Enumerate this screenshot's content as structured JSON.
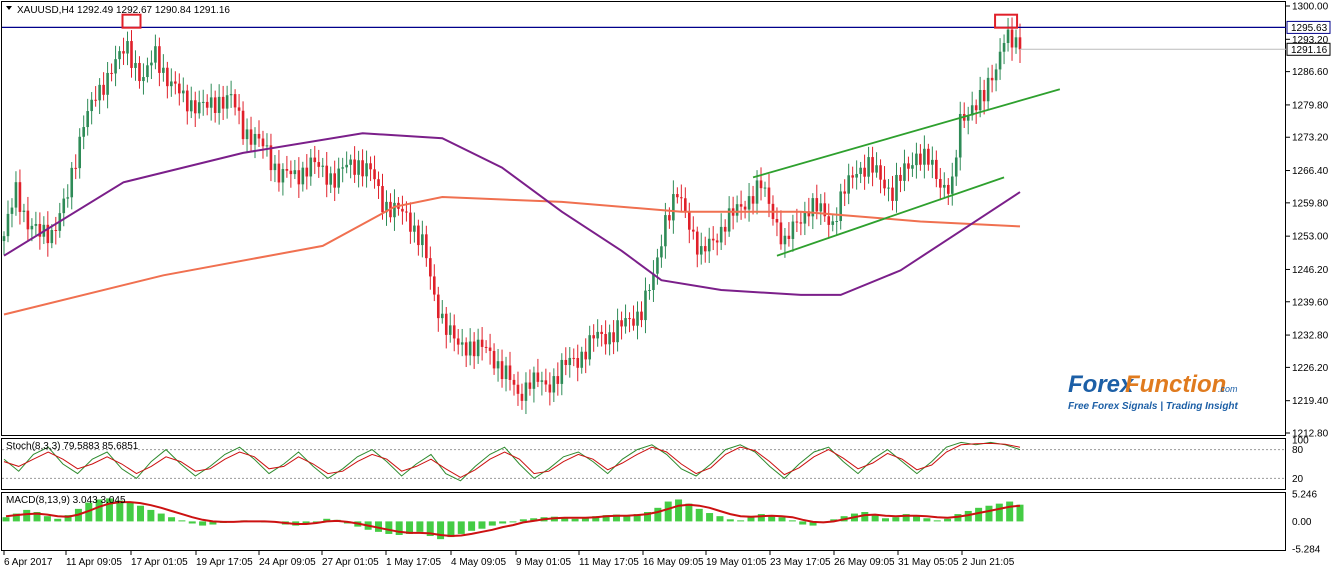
{
  "header": {
    "text": "XAUUSD,H4  1292.49 1292.67 1290.84 1291.16"
  },
  "stoch": {
    "label": "Stoch(8,3,3) 79.5883 85.6851"
  },
  "macd": {
    "label": "MACD(8,13,9) 3.043 3.045"
  },
  "watermark": {
    "brand_a": "Forex",
    "brand_b": "Function",
    "brand_c": ".com",
    "tagline": "Free Forex Signals | Trading Insight"
  },
  "colors": {
    "bull": "#2e8b57",
    "bear": "#e0202a",
    "ma_slow": "#f07050",
    "ma_mid": "#7b1f8a",
    "channel": "#2ea02e",
    "resistance": "#00008b",
    "highlight": "#e0202a",
    "macd_hist": "#44cc44",
    "macd_signal": "#cc1111",
    "stoch_main": "#2e8b2e",
    "stoch_signal": "#cc1111"
  },
  "chart_data": [
    {
      "type": "candlestick",
      "title": "XAUUSD,H4",
      "y_ticks": [
        "1300.00",
        "1293.20",
        "1286.60",
        "1279.80",
        "1273.20",
        "1266.40",
        "1259.80",
        "1253.00",
        "1246.20",
        "1239.60",
        "1232.80",
        "1226.20",
        "1219.40",
        "1212.80"
      ],
      "ylim": [
        1212.8,
        1300.0
      ],
      "x_ticks": [
        "6 Apr 2017",
        "11 Apr 09:05",
        "17 Apr 01:05",
        "19 Apr 17:05",
        "24 Apr 09:05",
        "27 Apr 01:05",
        "1 May 17:05",
        "4 May 09:05",
        "9 May 01:05",
        "11 May 17:05",
        "16 May 09:05",
        "19 May 01:05",
        "23 May 17:05",
        "26 May 09:05",
        "31 May 05:05",
        "2 Jun 21:05"
      ],
      "price_labels": [
        {
          "value": 1295.63,
          "text": "1295.63",
          "style": "resistance"
        },
        {
          "value": 1291.16,
          "text": "1291.16",
          "style": "current"
        }
      ],
      "resistance_level": 1295.63,
      "anchors": [
        {
          "i": 0,
          "p": 1253
        },
        {
          "i": 3,
          "p": 1262
        },
        {
          "i": 6,
          "p": 1256
        },
        {
          "i": 9,
          "p": 1253
        },
        {
          "i": 12,
          "p": 1254
        },
        {
          "i": 16,
          "p": 1261
        },
        {
          "i": 20,
          "p": 1277
        },
        {
          "i": 24,
          "p": 1282
        },
        {
          "i": 27,
          "p": 1288
        },
        {
          "i": 31,
          "p": 1291
        },
        {
          "i": 35,
          "p": 1285
        },
        {
          "i": 38,
          "p": 1290
        },
        {
          "i": 42,
          "p": 1284
        },
        {
          "i": 45,
          "p": 1281
        },
        {
          "i": 48,
          "p": 1280
        },
        {
          "i": 51,
          "p": 1279
        },
        {
          "i": 54,
          "p": 1281
        },
        {
          "i": 57,
          "p": 1281
        },
        {
          "i": 60,
          "p": 1275
        },
        {
          "i": 63,
          "p": 1273
        },
        {
          "i": 66,
          "p": 1270
        },
        {
          "i": 69,
          "p": 1266
        },
        {
          "i": 73,
          "p": 1265
        },
        {
          "i": 77,
          "p": 1268
        },
        {
          "i": 80,
          "p": 1266
        },
        {
          "i": 83,
          "p": 1265
        },
        {
          "i": 86,
          "p": 1267
        },
        {
          "i": 89,
          "p": 1268
        },
        {
          "i": 92,
          "p": 1266
        },
        {
          "i": 95,
          "p": 1260
        },
        {
          "i": 99,
          "p": 1258
        },
        {
          "i": 102,
          "p": 1256
        },
        {
          "i": 105,
          "p": 1252
        },
        {
          "i": 108,
          "p": 1240
        },
        {
          "i": 111,
          "p": 1235
        },
        {
          "i": 114,
          "p": 1230
        },
        {
          "i": 117,
          "p": 1231
        },
        {
          "i": 120,
          "p": 1230
        },
        {
          "i": 123,
          "p": 1228
        },
        {
          "i": 126,
          "p": 1225
        },
        {
          "i": 129,
          "p": 1220
        },
        {
          "i": 132,
          "p": 1224
        },
        {
          "i": 136,
          "p": 1222
        },
        {
          "i": 140,
          "p": 1226
        },
        {
          "i": 144,
          "p": 1228
        },
        {
          "i": 148,
          "p": 1232
        },
        {
          "i": 152,
          "p": 1233
        },
        {
          "i": 156,
          "p": 1235
        },
        {
          "i": 160,
          "p": 1238
        },
        {
          "i": 163,
          "p": 1244
        },
        {
          "i": 166,
          "p": 1257
        },
        {
          "i": 169,
          "p": 1261
        },
        {
          "i": 172,
          "p": 1256
        },
        {
          "i": 175,
          "p": 1249
        },
        {
          "i": 178,
          "p": 1252
        },
        {
          "i": 181,
          "p": 1256
        },
        {
          "i": 184,
          "p": 1258
        },
        {
          "i": 187,
          "p": 1261
        },
        {
          "i": 190,
          "p": 1263
        },
        {
          "i": 193,
          "p": 1258
        },
        {
          "i": 196,
          "p": 1251
        },
        {
          "i": 199,
          "p": 1256
        },
        {
          "i": 202,
          "p": 1259
        },
        {
          "i": 205,
          "p": 1258
        },
        {
          "i": 208,
          "p": 1256
        },
        {
          "i": 211,
          "p": 1262
        },
        {
          "i": 214,
          "p": 1267
        },
        {
          "i": 217,
          "p": 1267
        },
        {
          "i": 220,
          "p": 1265
        },
        {
          "i": 223,
          "p": 1262
        },
        {
          "i": 226,
          "p": 1266
        },
        {
          "i": 229,
          "p": 1270
        },
        {
          "i": 232,
          "p": 1268
        },
        {
          "i": 235,
          "p": 1264
        },
        {
          "i": 238,
          "p": 1263
        },
        {
          "i": 240,
          "p": 1276
        },
        {
          "i": 243,
          "p": 1280
        },
        {
          "i": 246,
          "p": 1281
        },
        {
          "i": 249,
          "p": 1288
        },
        {
          "i": 251,
          "p": 1294
        },
        {
          "i": 253,
          "p": 1292
        },
        {
          "i": 255,
          "p": 1291.16
        }
      ],
      "moving_averages": [
        {
          "name": "slow",
          "points": [
            [
              0,
              1237
            ],
            [
              40,
              1245
            ],
            [
              80,
              1251
            ],
            [
              98,
              1259
            ],
            [
              110,
              1261
            ],
            [
              140,
              1260
            ],
            [
              170,
              1258
            ],
            [
              200,
              1258
            ],
            [
              230,
              1256
            ],
            [
              255,
              1255
            ]
          ]
        },
        {
          "name": "mid",
          "points": [
            [
              0,
              1249
            ],
            [
              30,
              1264
            ],
            [
              60,
              1270
            ],
            [
              90,
              1274
            ],
            [
              110,
              1273
            ],
            [
              125,
              1267
            ],
            [
              140,
              1258
            ],
            [
              155,
              1250
            ],
            [
              165,
              1244
            ],
            [
              180,
              1242
            ],
            [
              200,
              1241
            ],
            [
              210,
              1241
            ],
            [
              225,
              1246
            ],
            [
              240,
              1254
            ],
            [
              255,
              1262
            ]
          ]
        }
      ],
      "channel_lines": [
        {
          "from": [
            188,
            1265
          ],
          "to": [
            265,
            1283
          ]
        },
        {
          "from": [
            194,
            1249
          ],
          "to": [
            251,
            1265
          ]
        }
      ],
      "highlights": [
        {
          "i": 32,
          "p": 1297
        },
        {
          "i": 251,
          "p": 1297
        }
      ]
    },
    {
      "type": "line",
      "title": "Stoch(8,3,3)",
      "y_ticks": [
        "100",
        "80",
        "20"
      ],
      "ylim": [
        0,
        100
      ],
      "series": [
        {
          "name": "main",
          "values": [
            60,
            35,
            70,
            85,
            50,
            30,
            60,
            75,
            40,
            20,
            55,
            80,
            50,
            25,
            45,
            70,
            85,
            60,
            30,
            50,
            75,
            45,
            20,
            40,
            65,
            80,
            55,
            25,
            50,
            70,
            30,
            15,
            45,
            70,
            85,
            50,
            20,
            40,
            65,
            75,
            55,
            30,
            60,
            80,
            90,
            70,
            40,
            25,
            50,
            80,
            90,
            75,
            45,
            20,
            50,
            75,
            85,
            55,
            30,
            60,
            80,
            55,
            30,
            55,
            85,
            95,
            90,
            95,
            90,
            80
          ]
        },
        {
          "name": "signal",
          "values": [
            55,
            45,
            60,
            75,
            60,
            40,
            50,
            65,
            50,
            30,
            45,
            65,
            55,
            35,
            40,
            60,
            75,
            65,
            40,
            45,
            65,
            50,
            30,
            35,
            55,
            70,
            60,
            35,
            45,
            60,
            40,
            22,
            38,
            60,
            75,
            60,
            30,
            35,
            55,
            70,
            60,
            38,
            52,
            70,
            85,
            75,
            50,
            30,
            42,
            70,
            85,
            78,
            55,
            28,
            42,
            65,
            80,
            62,
            40,
            52,
            72,
            60,
            38,
            48,
            75,
            90,
            92,
            93,
            91,
            85
          ]
        }
      ]
    },
    {
      "type": "bar",
      "title": "MACD(8,13,9)",
      "y_ticks": [
        "5.246",
        "0.00",
        "-5.284"
      ],
      "ylim": [
        -5.284,
        5.246
      ],
      "series": [
        {
          "name": "histogram",
          "values": [
            0.8,
            1.5,
            2.2,
            1.8,
            1.0,
            0.5,
            1.2,
            2.4,
            3.6,
            4.2,
            4.4,
            4.0,
            3.6,
            3.0,
            2.2,
            1.5,
            0.8,
            0.2,
            -0.4,
            -0.8,
            -0.6,
            -0.3,
            0.0,
            0.2,
            0.1,
            0.0,
            -0.2,
            -0.6,
            -0.8,
            -0.6,
            0.0,
            0.5,
            0.3,
            -0.4,
            -1.0,
            -1.6,
            -2.0,
            -2.4,
            -2.6,
            -2.4,
            -2.0,
            -2.8,
            -3.4,
            -3.0,
            -2.4,
            -1.8,
            -1.4,
            -0.8,
            -0.4,
            0.0,
            0.4,
            0.6,
            0.8,
            0.9,
            0.7,
            0.5,
            0.7,
            1.0,
            1.2,
            1.3,
            1.1,
            1.4,
            1.8,
            2.6,
            3.8,
            4.2,
            3.4,
            2.4,
            1.6,
            1.0,
            0.4,
            0.2,
            0.8,
            1.4,
            1.2,
            0.8,
            0.2,
            -0.6,
            -0.8,
            -0.2,
            0.4,
            1.0,
            1.5,
            1.8,
            1.2,
            0.6,
            0.8,
            1.4,
            1.0,
            0.6,
            0.2,
            0.5,
            1.4,
            2.0,
            2.6,
            3.0,
            3.4,
            3.8,
            3.2
          ]
        },
        {
          "name": "signal",
          "values": [
            1.0,
            1.2,
            1.4,
            1.5,
            1.3,
            1.0,
            0.9,
            1.3,
            2.0,
            2.8,
            3.4,
            3.7,
            3.7,
            3.5,
            3.1,
            2.6,
            2.0,
            1.4,
            0.8,
            0.3,
            0.0,
            -0.1,
            -0.1,
            0.0,
            0.0,
            0.0,
            -0.1,
            -0.3,
            -0.5,
            -0.5,
            -0.3,
            0.0,
            0.1,
            -0.1,
            -0.4,
            -0.8,
            -1.2,
            -1.6,
            -2.0,
            -2.2,
            -2.2,
            -2.3,
            -2.6,
            -2.8,
            -2.7,
            -2.4,
            -2.0,
            -1.6,
            -1.1,
            -0.7,
            -0.2,
            0.1,
            0.4,
            0.6,
            0.7,
            0.7,
            0.7,
            0.8,
            1.0,
            1.1,
            1.1,
            1.2,
            1.4,
            1.8,
            2.4,
            3.0,
            3.2,
            3.0,
            2.6,
            2.0,
            1.4,
            1.0,
            0.9,
            1.0,
            1.1,
            1.0,
            0.8,
            0.3,
            -0.1,
            -0.2,
            0.0,
            0.4,
            0.8,
            1.2,
            1.3,
            1.1,
            1.0,
            1.1,
            1.1,
            1.0,
            0.8,
            0.7,
            0.9,
            1.2,
            1.6,
            2.0,
            2.4,
            2.8,
            3.0
          ]
        }
      ]
    }
  ]
}
